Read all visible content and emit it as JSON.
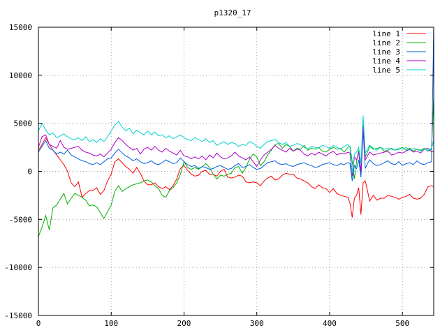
{
  "chart_data": {
    "type": "line",
    "title": "p1320_17",
    "xlabel": "",
    "ylabel": "",
    "xlim": [
      0,
      543
    ],
    "ylim": [
      -15000,
      15000
    ],
    "x_ticks": [
      0,
      100,
      200,
      300,
      400,
      500
    ],
    "y_ticks": [
      -15000,
      -10000,
      -5000,
      0,
      5000,
      10000,
      15000
    ],
    "grid": true,
    "legend_position": "top-right",
    "series": [
      {
        "name": "line 1",
        "color": "#ff0000",
        "x": [
          0,
          5,
          10,
          15,
          20,
          25,
          30,
          35,
          40,
          45,
          50,
          55,
          60,
          65,
          70,
          75,
          80,
          85,
          90,
          95,
          100,
          105,
          110,
          115,
          120,
          125,
          130,
          135,
          140,
          145,
          150,
          155,
          160,
          165,
          170,
          175,
          180,
          185,
          190,
          195,
          200,
          205,
          210,
          215,
          220,
          225,
          230,
          235,
          240,
          245,
          250,
          255,
          260,
          265,
          270,
          275,
          280,
          285,
          290,
          295,
          300,
          305,
          310,
          315,
          320,
          325,
          330,
          335,
          340,
          345,
          350,
          355,
          360,
          365,
          370,
          375,
          380,
          385,
          390,
          395,
          400,
          405,
          410,
          415,
          420,
          425,
          428,
          431,
          434,
          437,
          440,
          443,
          446,
          449,
          452,
          455,
          460,
          465,
          470,
          475,
          480,
          485,
          490,
          495,
          500,
          505,
          510,
          515,
          520,
          525,
          530,
          535,
          540,
          543
        ],
        "y": [
          2200,
          2800,
          3500,
          2800,
          2200,
          1700,
          1200,
          700,
          0,
          -1200,
          -1600,
          -1100,
          -2700,
          -2300,
          -2000,
          -2000,
          -1700,
          -2400,
          -2000,
          -1000,
          -300,
          1000,
          1300,
          900,
          500,
          200,
          -200,
          400,
          -200,
          -1000,
          -1400,
          -1400,
          -1200,
          -1600,
          -1800,
          -1600,
          -1900,
          -1500,
          -800,
          300,
          600,
          100,
          -300,
          -500,
          -400,
          0,
          100,
          -300,
          -300,
          -500,
          0,
          200,
          -600,
          -700,
          -600,
          -400,
          -500,
          -1100,
          -1200,
          -1100,
          -1200,
          -1500,
          -1000,
          -700,
          -500,
          -900,
          -800,
          -400,
          -200,
          -300,
          -300,
          -700,
          -800,
          -1000,
          -1200,
          -1600,
          -1800,
          -1400,
          -1700,
          -1800,
          -2200,
          -1800,
          -2300,
          -2500,
          -2600,
          -2700,
          -3300,
          -4800,
          -2800,
          -2500,
          -1700,
          -4500,
          -1200,
          -1000,
          -2000,
          -3100,
          -2500,
          -3000,
          -2800,
          -2800,
          -2500,
          -2600,
          -2700,
          -2900,
          -2700,
          -2600,
          -2400,
          -2800,
          -2900,
          -2800,
          -2400,
          -1600,
          -1500,
          -1600
        ]
      },
      {
        "name": "line 2",
        "color": "#00b000",
        "x": [
          0,
          5,
          10,
          15,
          20,
          25,
          30,
          35,
          40,
          45,
          50,
          55,
          60,
          65,
          70,
          75,
          80,
          85,
          90,
          95,
          100,
          105,
          110,
          115,
          120,
          125,
          130,
          135,
          140,
          145,
          150,
          155,
          160,
          165,
          170,
          175,
          180,
          185,
          190,
          195,
          200,
          205,
          210,
          215,
          220,
          225,
          230,
          235,
          240,
          245,
          250,
          255,
          260,
          265,
          270,
          275,
          280,
          285,
          290,
          295,
          300,
          305,
          310,
          315,
          320,
          325,
          330,
          335,
          340,
          345,
          350,
          355,
          360,
          365,
          370,
          375,
          380,
          385,
          390,
          395,
          400,
          405,
          410,
          415,
          420,
          425,
          428,
          431,
          434,
          437,
          440,
          443,
          446,
          449,
          452,
          455,
          460,
          465,
          470,
          475,
          480,
          485,
          490,
          495,
          500,
          505,
          510,
          515,
          520,
          525,
          530,
          535,
          540,
          543
        ],
        "y": [
          -6800,
          -5800,
          -4600,
          -6100,
          -3800,
          -3500,
          -2900,
          -2300,
          -3400,
          -2800,
          -2300,
          -2500,
          -2700,
          -3000,
          -3600,
          -3500,
          -3700,
          -4300,
          -4900,
          -4200,
          -3500,
          -2100,
          -1500,
          -2100,
          -1800,
          -1600,
          -1400,
          -1300,
          -1200,
          -1000,
          -900,
          -1100,
          -1500,
          -1800,
          -2500,
          -2700,
          -2000,
          -1700,
          -1200,
          -300,
          1000,
          400,
          200,
          400,
          200,
          500,
          800,
          400,
          -300,
          -800,
          -400,
          -500,
          -300,
          -200,
          400,
          500,
          -200,
          400,
          1300,
          1800,
          1500,
          600,
          1000,
          1700,
          2200,
          2800,
          2900,
          2400,
          2800,
          2600,
          2100,
          2400,
          2300,
          2700,
          2200,
          2400,
          2300,
          2500,
          2100,
          2000,
          2300,
          2500,
          2300,
          2400,
          2000,
          2500,
          2600,
          1000,
          -800,
          1000,
          2200,
          -600,
          4900,
          1500,
          2000,
          2600,
          2300,
          2400,
          2500,
          2100,
          2200,
          2400,
          2200,
          2300,
          2500,
          2200,
          2400,
          2100,
          2300,
          2200,
          2400,
          2100,
          2300,
          7800
        ]
      },
      {
        "name": "line 3",
        "color": "#0060e0",
        "x": [
          0,
          5,
          10,
          15,
          20,
          25,
          30,
          35,
          40,
          45,
          50,
          55,
          60,
          65,
          70,
          75,
          80,
          85,
          90,
          95,
          100,
          105,
          110,
          115,
          120,
          125,
          130,
          135,
          140,
          145,
          150,
          155,
          160,
          165,
          170,
          175,
          180,
          185,
          190,
          195,
          200,
          205,
          210,
          215,
          220,
          225,
          230,
          235,
          240,
          245,
          250,
          255,
          260,
          265,
          270,
          275,
          280,
          285,
          290,
          295,
          300,
          305,
          310,
          315,
          320,
          325,
          330,
          335,
          340,
          345,
          350,
          355,
          360,
          365,
          370,
          375,
          380,
          385,
          390,
          395,
          400,
          405,
          410,
          415,
          420,
          425,
          428,
          431,
          434,
          437,
          440,
          443,
          446,
          449,
          452,
          455,
          460,
          465,
          470,
          475,
          480,
          485,
          490,
          495,
          500,
          505,
          510,
          515,
          520,
          525,
          530,
          535,
          540,
          543
        ],
        "y": [
          2000,
          2600,
          3200,
          2400,
          2200,
          1800,
          2000,
          1800,
          2200,
          1700,
          1500,
          1300,
          1100,
          1000,
          800,
          700,
          900,
          700,
          1000,
          1300,
          1400,
          1900,
          2300,
          1900,
          1600,
          1400,
          1100,
          1300,
          1000,
          800,
          900,
          1100,
          800,
          700,
          900,
          1200,
          1000,
          800,
          900,
          1400,
          1000,
          700,
          500,
          600,
          300,
          500,
          400,
          200,
          300,
          500,
          600,
          400,
          200,
          300,
          600,
          800,
          400,
          500,
          700,
          400,
          200,
          300,
          600,
          900,
          1000,
          1100,
          800,
          700,
          800,
          600,
          500,
          700,
          800,
          900,
          700,
          600,
          400,
          500,
          700,
          800,
          900,
          700,
          600,
          800,
          700,
          900,
          800,
          -1000,
          600,
          300,
          1200,
          -600,
          4200,
          300,
          800,
          1200,
          800,
          600,
          700,
          900,
          1100,
          800,
          700,
          1000,
          600,
          800,
          900,
          700,
          1100,
          800,
          700,
          900,
          1000,
          15000
        ]
      },
      {
        "name": "line 4",
        "color": "#b000d0",
        "x": [
          0,
          5,
          10,
          15,
          20,
          25,
          30,
          35,
          40,
          45,
          50,
          55,
          60,
          65,
          70,
          75,
          80,
          85,
          90,
          95,
          100,
          105,
          110,
          115,
          120,
          125,
          130,
          135,
          140,
          145,
          150,
          155,
          160,
          165,
          170,
          175,
          180,
          185,
          190,
          195,
          200,
          205,
          210,
          215,
          220,
          225,
          230,
          235,
          240,
          245,
          250,
          255,
          260,
          265,
          270,
          275,
          280,
          285,
          290,
          295,
          300,
          305,
          310,
          315,
          320,
          325,
          330,
          335,
          340,
          345,
          350,
          355,
          360,
          365,
          370,
          375,
          380,
          385,
          390,
          395,
          400,
          405,
          410,
          415,
          420,
          425,
          428,
          431,
          434,
          437,
          440,
          443,
          446,
          449,
          452,
          455,
          460,
          465,
          470,
          475,
          480,
          485,
          490,
          495,
          500,
          505,
          510,
          515,
          520,
          525,
          530,
          535,
          540,
          543
        ],
        "y": [
          2500,
          3600,
          3800,
          2800,
          2600,
          2400,
          3200,
          2500,
          2300,
          2400,
          2500,
          2600,
          2200,
          2000,
          1900,
          1700,
          1600,
          1800,
          1500,
          1900,
          2300,
          3000,
          3500,
          3200,
          2800,
          2500,
          2200,
          2400,
          1800,
          2300,
          2500,
          2200,
          2600,
          2200,
          2000,
          2400,
          2100,
          1900,
          1700,
          2200,
          1600,
          1500,
          1300,
          1500,
          1300,
          1600,
          1200,
          1700,
          1400,
          1900,
          1500,
          1300,
          1400,
          1600,
          2000,
          1600,
          1400,
          1200,
          1500,
          1000,
          500,
          1200,
          1700,
          2000,
          2300,
          2700,
          2400,
          2200,
          2000,
          2400,
          2100,
          2300,
          2200,
          1800,
          1600,
          1900,
          1700,
          2000,
          1800,
          1600,
          1900,
          2100,
          1700,
          1900,
          1800,
          2000,
          1900,
          -500,
          1500,
          1200,
          2000,
          0,
          4800,
          1200,
          1600,
          2000,
          1700,
          1800,
          1900,
          2000,
          2100,
          1700,
          1800,
          2000,
          1900,
          2100,
          2300,
          2000,
          2100,
          1900,
          2300,
          2400,
          2000,
          2100
        ]
      },
      {
        "name": "line 5",
        "color": "#00d0d0",
        "x": [
          0,
          5,
          10,
          15,
          20,
          25,
          30,
          35,
          40,
          45,
          50,
          55,
          60,
          65,
          70,
          75,
          80,
          85,
          90,
          95,
          100,
          105,
          110,
          115,
          120,
          125,
          130,
          135,
          140,
          145,
          150,
          155,
          160,
          165,
          170,
          175,
          180,
          185,
          190,
          195,
          200,
          205,
          210,
          215,
          220,
          225,
          230,
          235,
          240,
          245,
          250,
          255,
          260,
          265,
          270,
          275,
          280,
          285,
          290,
          295,
          300,
          305,
          310,
          315,
          320,
          325,
          330,
          335,
          340,
          345,
          350,
          355,
          360,
          365,
          370,
          375,
          380,
          385,
          390,
          395,
          400,
          405,
          410,
          415,
          420,
          425,
          428,
          431,
          434,
          437,
          440,
          443,
          446,
          449,
          452,
          455,
          460,
          465,
          470,
          475,
          480,
          485,
          490,
          495,
          500,
          505,
          510,
          515,
          520,
          525,
          530,
          535,
          540,
          543
        ],
        "y": [
          4200,
          5000,
          4300,
          3800,
          4000,
          3500,
          3700,
          3900,
          3600,
          3400,
          3300,
          3500,
          3200,
          3600,
          3100,
          3300,
          3000,
          3400,
          3100,
          3600,
          4200,
          4800,
          5200,
          4600,
          4200,
          4500,
          3900,
          4300,
          4000,
          3800,
          4200,
          3800,
          4100,
          3700,
          3800,
          3500,
          3700,
          3400,
          3600,
          3800,
          3500,
          3300,
          3200,
          3500,
          3300,
          3100,
          3400,
          3000,
          3200,
          2700,
          2900,
          3100,
          2800,
          3000,
          2900,
          2600,
          2800,
          2700,
          3100,
          2900,
          2600,
          2400,
          2800,
          3100,
          3200,
          3300,
          3000,
          2800,
          3000,
          2600,
          2700,
          2900,
          2800,
          2500,
          2300,
          2600,
          2500,
          2400,
          2700,
          2600,
          2400,
          2700,
          2500,
          2300,
          2600,
          2800,
          2500,
          -200,
          1800,
          2000,
          2500,
          800,
          5800,
          1900,
          2300,
          2700,
          2400,
          2200,
          2500,
          2300,
          2400,
          2300,
          2200,
          2400,
          2300,
          2500,
          2200,
          2400,
          2300,
          2100,
          2300,
          2200,
          2400,
          3200
        ]
      }
    ]
  }
}
